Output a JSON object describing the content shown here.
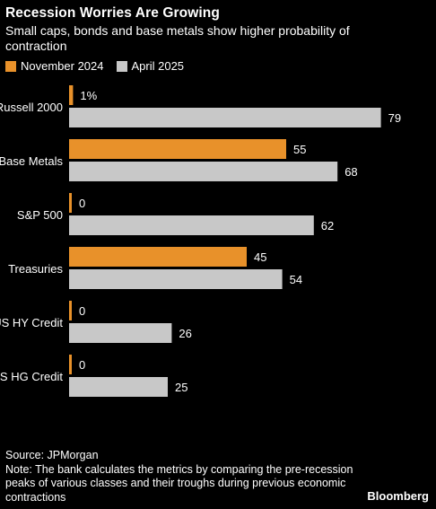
{
  "header": {
    "title": "Recession Worries Are Growing",
    "subtitle": "Small caps, bonds and base metals show higher probability of contraction"
  },
  "colors": {
    "background": "#000000",
    "text": "#ffffff",
    "november": "#e8912a",
    "april": "#c8c8c8"
  },
  "chart_data": {
    "type": "bar",
    "orientation": "horizontal",
    "categories": [
      "Russell 2000",
      "Base Metals",
      "S&P 500",
      "Treasuries",
      "US HY Credit",
      "US HG Credit"
    ],
    "series": [
      {
        "name": "November 2024",
        "values": [
          1,
          55,
          0,
          45,
          0,
          0
        ],
        "labels": [
          "1%",
          "55",
          "0",
          "45",
          "0",
          "0"
        ]
      },
      {
        "name": "April 2025",
        "values": [
          79,
          68,
          62,
          54,
          26,
          25
        ],
        "labels": [
          "79",
          "68",
          "62",
          "54",
          "26",
          "25"
        ]
      }
    ],
    "xlim": [
      0,
      100
    ],
    "legend": "top-left",
    "grid": false
  },
  "footer": {
    "source": "Source: JPMorgan",
    "note": "Note: The bank calculates the metrics by comparing the pre-recession peaks of various classes and their troughs during previous economic contractions"
  },
  "brand": "Bloomberg"
}
